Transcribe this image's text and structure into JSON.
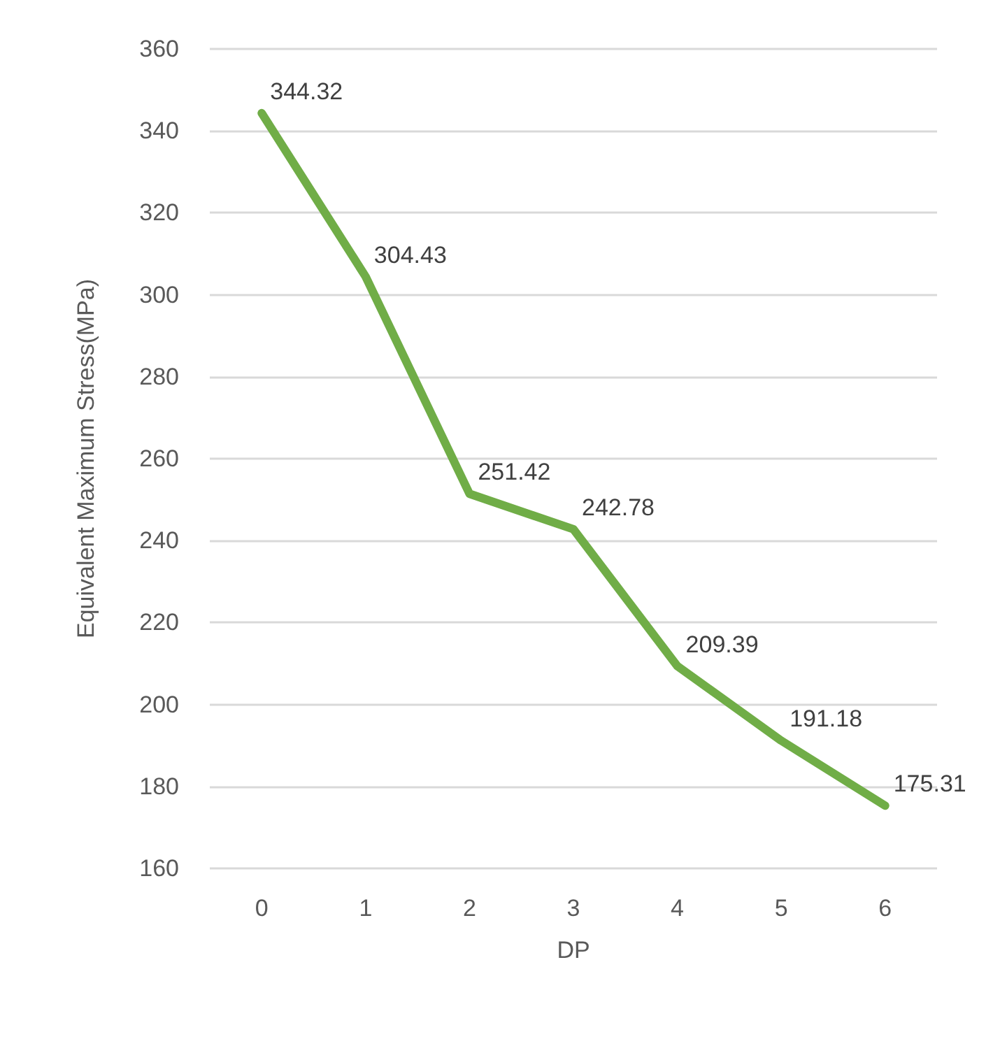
{
  "chart_data": {
    "type": "line",
    "xlabel": "DP",
    "ylabel": "Equivalent Maximum Stress(MPa)",
    "categories": [
      "0",
      "1",
      "2",
      "3",
      "4",
      "5",
      "6"
    ],
    "series": [
      {
        "color": "#70ad47",
        "values": [
          344.32,
          304.43,
          251.42,
          242.78,
          209.39,
          191.18,
          175.31
        ]
      }
    ],
    "ylim": [
      160,
      360
    ],
    "yticks": [
      160,
      180,
      200,
      220,
      240,
      260,
      280,
      300,
      320,
      340,
      360
    ],
    "grid": "y",
    "data_labels": true,
    "marker": "none"
  }
}
